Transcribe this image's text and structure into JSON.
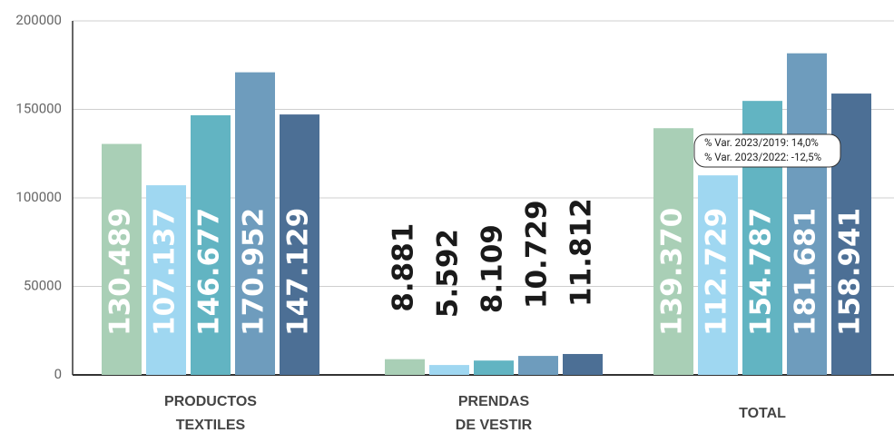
{
  "chart_data": {
    "type": "bar",
    "categories": [
      "PRODUCTOS\nTEXTILES",
      "PRENDAS\nDE VESTIR",
      "TOTAL"
    ],
    "series": [
      {
        "color": "#a9cfb6",
        "values": [
          130489,
          8881,
          139370
        ],
        "value_labels": [
          "130.489",
          "8.881",
          "139.370"
        ]
      },
      {
        "color": "#9fd7f1",
        "values": [
          107137,
          5592,
          112729
        ],
        "value_labels": [
          "107.137",
          "5.592",
          "112.729"
        ]
      },
      {
        "color": "#62b4c2",
        "values": [
          146677,
          8109,
          154787
        ],
        "value_labels": [
          "146.677",
          "8.109",
          "154.787"
        ]
      },
      {
        "color": "#6e9cbd",
        "values": [
          170952,
          10729,
          181681
        ],
        "value_labels": [
          "170.952",
          "10.729",
          "181.681"
        ]
      },
      {
        "color": "#4c6f95",
        "values": [
          147129,
          11812,
          158941
        ],
        "value_labels": [
          "147.129",
          "11.812",
          "158.941"
        ]
      }
    ],
    "ylim": [
      0,
      200000
    ],
    "yticks": [
      0,
      50000,
      100000,
      150000,
      200000
    ],
    "grid": true,
    "annotations": [
      "% Var. 2023/2019: 14,0%",
      "% Var. 2023/2022: -12,5%"
    ]
  }
}
